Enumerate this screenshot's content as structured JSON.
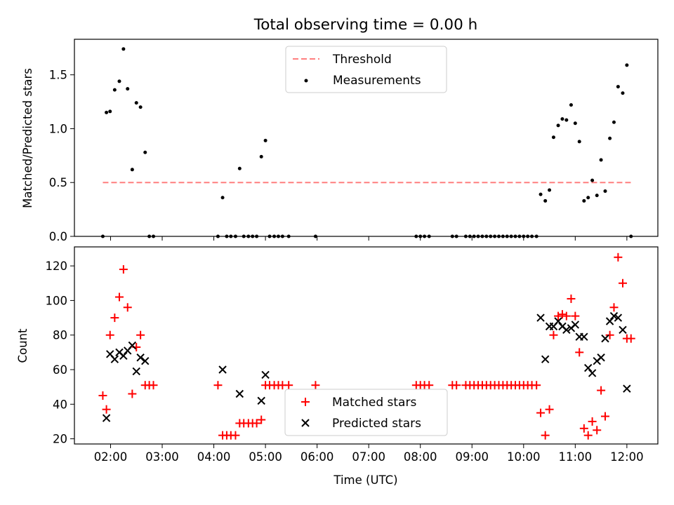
{
  "chart_data": {
    "type": "scatter",
    "title": "Total observing time = 0.00 h",
    "xlabel": "Time (UTC)",
    "x_unit": "hours UTC",
    "xlim": [
      1.3,
      12.6
    ],
    "xticks": [
      {
        "value": 2,
        "label": "02:00"
      },
      {
        "value": 3,
        "label": "03:00"
      },
      {
        "value": 4,
        "label": "04:00"
      },
      {
        "value": 5,
        "label": "05:00"
      },
      {
        "value": 6,
        "label": "06:00"
      },
      {
        "value": 7,
        "label": "07:00"
      },
      {
        "value": 8,
        "label": "08:00"
      },
      {
        "value": 9,
        "label": "09:00"
      },
      {
        "value": 10,
        "label": "10:00"
      },
      {
        "value": 11,
        "label": "11:00"
      },
      {
        "value": 12,
        "label": "12:00"
      }
    ],
    "panels": [
      {
        "ylabel": "Matched/Predicted stars",
        "ylim": [
          0,
          1.83
        ],
        "yticks": [
          {
            "value": 0.0,
            "label": "0.0"
          },
          {
            "value": 0.5,
            "label": "0.5"
          },
          {
            "value": 1.0,
            "label": "1.0"
          },
          {
            "value": 1.5,
            "label": "1.5"
          }
        ],
        "legend_position": "top-center",
        "threshold": {
          "name": "Threshold",
          "value": 0.5,
          "x_range": [
            1.85,
            12.1
          ],
          "color": "#ff7f7f"
        },
        "series": [
          {
            "name": "Measurements",
            "marker": "dot",
            "color": "#000000",
            "points": [
              [
                1.85,
                0
              ],
              [
                1.92,
                1.15
              ],
              [
                1.99,
                1.16
              ],
              [
                2.08,
                1.36
              ],
              [
                2.17,
                1.44
              ],
              [
                2.25,
                1.74
              ],
              [
                2.33,
                1.37
              ],
              [
                2.42,
                0.62
              ],
              [
                2.5,
                1.24
              ],
              [
                2.58,
                1.2
              ],
              [
                2.67,
                0.78
              ],
              [
                2.75,
                0
              ],
              [
                2.83,
                0
              ],
              [
                4.08,
                0
              ],
              [
                4.17,
                0.36
              ],
              [
                4.25,
                0
              ],
              [
                4.33,
                0
              ],
              [
                4.42,
                0
              ],
              [
                4.5,
                0.63
              ],
              [
                4.58,
                0
              ],
              [
                4.67,
                0
              ],
              [
                4.75,
                0
              ],
              [
                4.83,
                0
              ],
              [
                4.92,
                0.74
              ],
              [
                5,
                0.89
              ],
              [
                5.08,
                0
              ],
              [
                5.17,
                0
              ],
              [
                5.25,
                0
              ],
              [
                5.33,
                0
              ],
              [
                5.45,
                0
              ],
              [
                5.97,
                0
              ],
              [
                7.92,
                0
              ],
              [
                8,
                0
              ],
              [
                8.08,
                0
              ],
              [
                8.17,
                0
              ],
              [
                8.62,
                0
              ],
              [
                8.7,
                0
              ],
              [
                8.88,
                0
              ],
              [
                8.96,
                0
              ],
              [
                9.04,
                0
              ],
              [
                9.12,
                0
              ],
              [
                9.2,
                0
              ],
              [
                9.28,
                0
              ],
              [
                9.36,
                0
              ],
              [
                9.44,
                0
              ],
              [
                9.52,
                0
              ],
              [
                9.6,
                0
              ],
              [
                9.68,
                0
              ],
              [
                9.76,
                0
              ],
              [
                9.84,
                0
              ],
              [
                9.92,
                0
              ],
              [
                10,
                0
              ],
              [
                10.08,
                0
              ],
              [
                10.16,
                0
              ],
              [
                10.25,
                0
              ],
              [
                10.33,
                0.39
              ],
              [
                10.42,
                0.33
              ],
              [
                10.5,
                0.43
              ],
              [
                10.58,
                0.92
              ],
              [
                10.67,
                1.03
              ],
              [
                10.75,
                1.09
              ],
              [
                10.83,
                1.08
              ],
              [
                10.92,
                1.22
              ],
              [
                11,
                1.05
              ],
              [
                11.08,
                0.88
              ],
              [
                11.17,
                0.33
              ],
              [
                11.25,
                0.36
              ],
              [
                11.33,
                0.52
              ],
              [
                11.42,
                0.38
              ],
              [
                11.5,
                0.71
              ],
              [
                11.58,
                0.42
              ],
              [
                11.67,
                0.91
              ],
              [
                11.75,
                1.06
              ],
              [
                11.83,
                1.39
              ],
              [
                11.92,
                1.33
              ],
              [
                12.0,
                1.59
              ],
              [
                12.08,
                0
              ]
            ]
          }
        ]
      },
      {
        "ylabel": "Count",
        "ylim": [
          17,
          131
        ],
        "yticks": [
          {
            "value": 20,
            "label": "20"
          },
          {
            "value": 40,
            "label": "40"
          },
          {
            "value": 60,
            "label": "60"
          },
          {
            "value": 80,
            "label": "80"
          },
          {
            "value": 100,
            "label": "100"
          },
          {
            "value": 120,
            "label": "120"
          }
        ],
        "legend_position": "bottom-center",
        "series": [
          {
            "name": "Matched stars",
            "marker": "plus",
            "color": "#ff0000",
            "points": [
              [
                1.85,
                45
              ],
              [
                1.92,
                37
              ],
              [
                1.99,
                80
              ],
              [
                2.08,
                90
              ],
              [
                2.17,
                102
              ],
              [
                2.25,
                118
              ],
              [
                2.33,
                96
              ],
              [
                2.42,
                46
              ],
              [
                2.5,
                73
              ],
              [
                2.58,
                80
              ],
              [
                2.67,
                51
              ],
              [
                2.75,
                51
              ],
              [
                2.83,
                51
              ],
              [
                4.08,
                51
              ],
              [
                4.17,
                22
              ],
              [
                4.25,
                22
              ],
              [
                4.33,
                22
              ],
              [
                4.42,
                22
              ],
              [
                4.5,
                29
              ],
              [
                4.58,
                29
              ],
              [
                4.67,
                29
              ],
              [
                4.75,
                29
              ],
              [
                4.83,
                29
              ],
              [
                4.92,
                31
              ],
              [
                5,
                51
              ],
              [
                5.08,
                51
              ],
              [
                5.17,
                51
              ],
              [
                5.25,
                51
              ],
              [
                5.33,
                51
              ],
              [
                5.45,
                51
              ],
              [
                5.97,
                51
              ],
              [
                7.92,
                51
              ],
              [
                8,
                51
              ],
              [
                8.08,
                51
              ],
              [
                8.17,
                51
              ],
              [
                8.62,
                51
              ],
              [
                8.7,
                51
              ],
              [
                8.88,
                51
              ],
              [
                8.96,
                51
              ],
              [
                9.04,
                51
              ],
              [
                9.12,
                51
              ],
              [
                9.2,
                51
              ],
              [
                9.28,
                51
              ],
              [
                9.36,
                51
              ],
              [
                9.44,
                51
              ],
              [
                9.52,
                51
              ],
              [
                9.6,
                51
              ],
              [
                9.68,
                51
              ],
              [
                9.76,
                51
              ],
              [
                9.84,
                51
              ],
              [
                9.92,
                51
              ],
              [
                10,
                51
              ],
              [
                10.08,
                51
              ],
              [
                10.16,
                51
              ],
              [
                10.25,
                51
              ],
              [
                10.33,
                35
              ],
              [
                10.42,
                22
              ],
              [
                10.5,
                37
              ],
              [
                10.58,
                80
              ],
              [
                10.67,
                91
              ],
              [
                10.75,
                92
              ],
              [
                10.83,
                91
              ],
              [
                10.92,
                101
              ],
              [
                11,
                91
              ],
              [
                11.08,
                70
              ],
              [
                11.17,
                26
              ],
              [
                11.25,
                22
              ],
              [
                11.33,
                30
              ],
              [
                11.42,
                25
              ],
              [
                11.5,
                48
              ],
              [
                11.58,
                33
              ],
              [
                11.67,
                80
              ],
              [
                11.75,
                96
              ],
              [
                11.83,
                125
              ],
              [
                11.92,
                110
              ],
              [
                12.0,
                78
              ],
              [
                12.08,
                78
              ]
            ]
          },
          {
            "name": "Predicted stars",
            "marker": "x",
            "color": "#000000",
            "points": [
              [
                1.92,
                32
              ],
              [
                1.99,
                69
              ],
              [
                2.08,
                66
              ],
              [
                2.17,
                70
              ],
              [
                2.25,
                68
              ],
              [
                2.33,
                71
              ],
              [
                2.42,
                74
              ],
              [
                2.5,
                59
              ],
              [
                2.58,
                67
              ],
              [
                2.67,
                65
              ],
              [
                4.17,
                60
              ],
              [
                4.5,
                46
              ],
              [
                4.92,
                42
              ],
              [
                5,
                57
              ],
              [
                10.33,
                90
              ],
              [
                10.42,
                66
              ],
              [
                10.5,
                85
              ],
              [
                10.58,
                85
              ],
              [
                10.67,
                88
              ],
              [
                10.75,
                85
              ],
              [
                10.83,
                83
              ],
              [
                10.92,
                84
              ],
              [
                11,
                86
              ],
              [
                11.08,
                79
              ],
              [
                11.17,
                79
              ],
              [
                11.25,
                61
              ],
              [
                11.33,
                58
              ],
              [
                11.42,
                65
              ],
              [
                11.5,
                67
              ],
              [
                11.58,
                78
              ],
              [
                11.67,
                88
              ],
              [
                11.75,
                91
              ],
              [
                11.83,
                90
              ],
              [
                11.92,
                83
              ],
              [
                12.0,
                49
              ]
            ]
          }
        ]
      }
    ]
  }
}
